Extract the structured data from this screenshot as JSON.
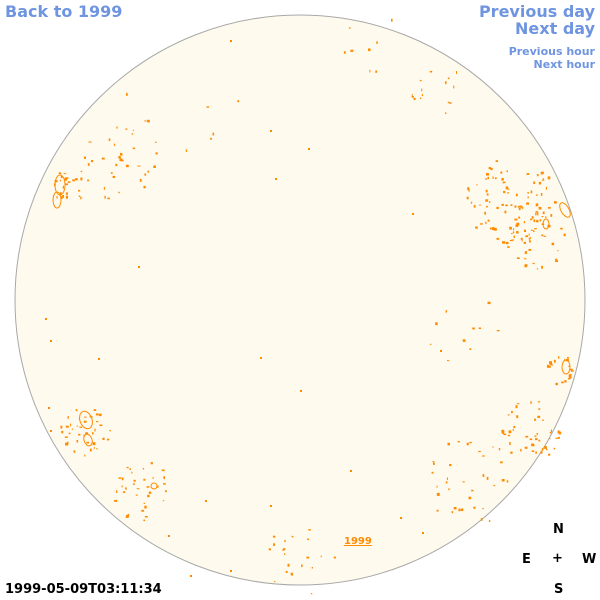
{
  "nav": {
    "back_label": "Back to 1999",
    "previous_day_label": "Previous day",
    "next_day_label": "Next day",
    "previous_hour_label": "Previous hour",
    "next_hour_label": "Next hour"
  },
  "sun": {
    "disk_color": "#fefaee",
    "feature_color": "#ff8c00"
  },
  "year_link_label": "1999",
  "timestamp": "1999-05-09T03:11:34",
  "compass": {
    "north": "N",
    "east": "E",
    "center": "+",
    "west": "W",
    "south": "S"
  }
}
